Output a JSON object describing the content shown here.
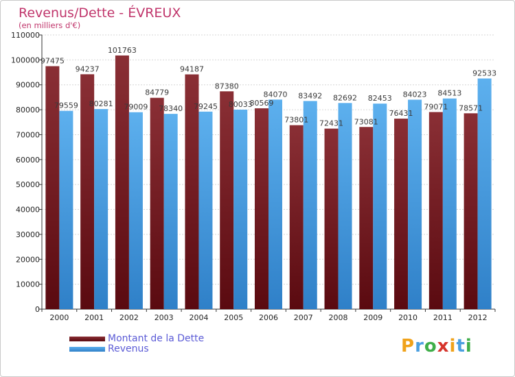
{
  "chart_data": {
    "type": "bar",
    "title": "Revenus/Dette - ÉVREUX",
    "subtitle": "(en milliers d'€)",
    "categories": [
      "2000",
      "2001",
      "2002",
      "2003",
      "2004",
      "2005",
      "2006",
      "2007",
      "2008",
      "2009",
      "2010",
      "2011",
      "2012"
    ],
    "series": [
      {
        "name": "Montant de la Dette",
        "color": "#7a1a22",
        "values": [
          97475,
          94237,
          101763,
          84779,
          94187,
          87380,
          80569,
          73801,
          72431,
          73081,
          76431,
          79071,
          78571
        ],
        "labels": [
          "97475",
          "94237",
          "101763",
          "84779",
          "94187",
          "87380",
          "80569",
          "73801",
          "72431",
          "73081",
          "76431",
          "79071",
          "78571"
        ]
      },
      {
        "name": "Revenus",
        "color": "#4a9fe0",
        "values": [
          79559,
          80281,
          79009,
          78340,
          79245,
          80033,
          84070,
          83492,
          82692,
          82453,
          84023,
          84513,
          92533
        ],
        "labels": [
          "79559",
          "80281",
          "79009",
          "78340",
          "79245",
          "80033",
          "84070",
          "83492",
          "82692",
          "82453",
          "84023",
          "84513",
          "92533"
        ]
      }
    ],
    "ylim": [
      0,
      110000
    ],
    "yticks": [
      0,
      10000,
      20000,
      30000,
      40000,
      50000,
      60000,
      70000,
      80000,
      90000,
      100000,
      110000
    ],
    "ytick_labels": [
      "0",
      "10000",
      "20000",
      "30000",
      "40000",
      "50000",
      "60000",
      "70000",
      "80000",
      "90000",
      "100000",
      "110000"
    ],
    "grid": true,
    "legend_position": "bottom-left"
  },
  "logo": {
    "text": "Proxiti",
    "letters": [
      "P",
      "r",
      "o",
      "x",
      "i",
      "t",
      "i"
    ],
    "colors": [
      "#f0a21a",
      "#4a9fe0",
      "#3fae49",
      "#d6342b",
      "#f0a21a",
      "#4a9fe0",
      "#3fae49"
    ]
  }
}
